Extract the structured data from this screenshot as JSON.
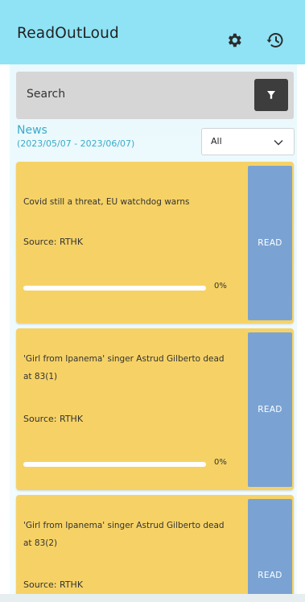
{
  "header": {
    "title": "ReadOutLoud",
    "icons": {
      "settings": "gear-icon",
      "history": "history-icon"
    }
  },
  "search": {
    "label": "Search",
    "filter_icon": "filter-icon"
  },
  "news": {
    "title": "News",
    "date_range": "(2023/05/07 - 2023/06/07)"
  },
  "filter_select": {
    "selected": "All",
    "icon": "chevron-down-icon"
  },
  "articles": [
    {
      "headline": "Covid still a threat, EU watchdog warns",
      "source": "Source: RTHK",
      "progress": 0,
      "progress_label": "0%",
      "read_label": "READ"
    },
    {
      "headline": "'Girl from Ipanema' singer Astrud Gilberto dead at 83(1)",
      "source": "Source: RTHK",
      "progress": 0,
      "progress_label": "0%",
      "read_label": "READ"
    },
    {
      "headline": "'Girl from Ipanema' singer Astrud Gilberto dead at 83(2)",
      "source": "Source: RTHK",
      "read_label": "READ"
    }
  ],
  "colors": {
    "header_bg": "#8fe3f5",
    "card_bg": "#f6d266",
    "read_button": "#7aa3d3",
    "accent": "#3aaac8",
    "filter_button": "#3d3d3d"
  }
}
